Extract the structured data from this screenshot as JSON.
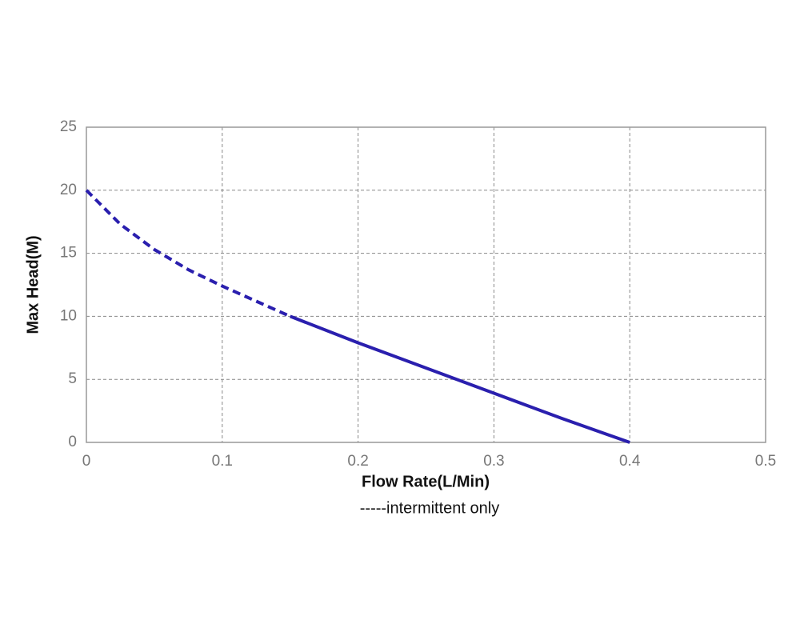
{
  "chart_data": {
    "type": "line",
    "xlabel": "Flow Rate(L/Min)",
    "ylabel": "Max Head(M)",
    "annotation": "-----intermittent only",
    "x": [
      0,
      0.025,
      0.05,
      0.075,
      0.1,
      0.125,
      0.15,
      0.2,
      0.25,
      0.3,
      0.35,
      0.4
    ],
    "series": [
      {
        "color": "#2a1fae",
        "dashed": true,
        "values": [
          20,
          17.3,
          15.3,
          13.7,
          12.4,
          11.2,
          10,
          null,
          null,
          null,
          null,
          null
        ]
      },
      {
        "color": "#2a1fae",
        "dashed": false,
        "values": [
          null,
          null,
          null,
          null,
          null,
          null,
          10,
          7.9,
          5.9,
          3.9,
          1.9,
          0
        ]
      }
    ],
    "xlim": [
      0,
      0.5
    ],
    "xticks": [
      0,
      0.1,
      0.2,
      0.3,
      0.4,
      0.5
    ],
    "ylim": [
      0,
      25
    ],
    "yticks": [
      0,
      5,
      10,
      15,
      20,
      25
    ],
    "grid": true
  }
}
